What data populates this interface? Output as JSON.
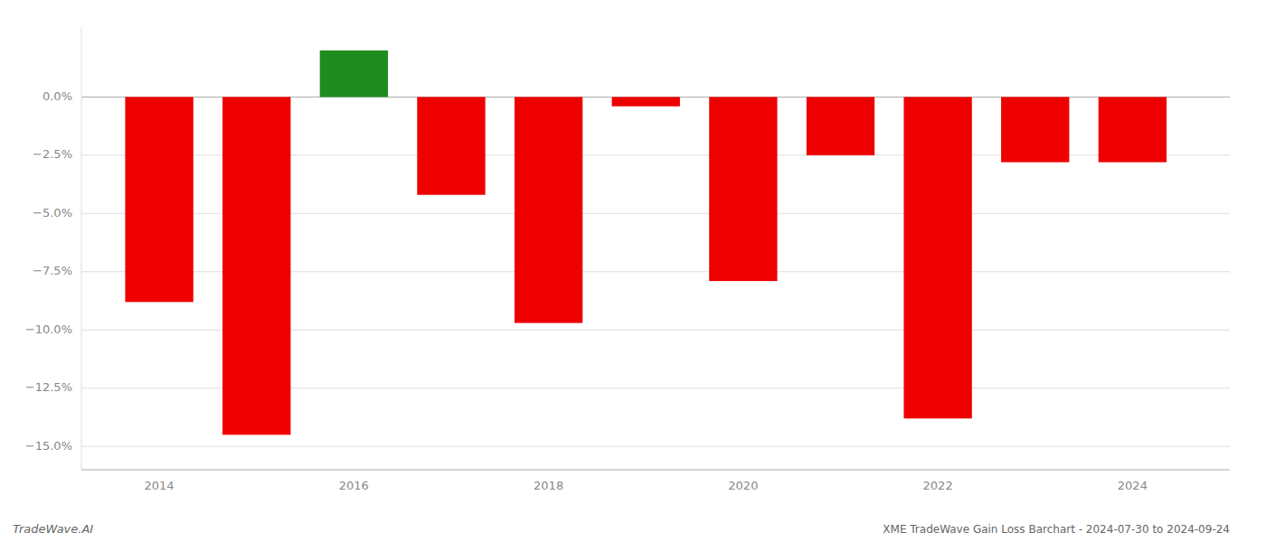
{
  "chart_data": {
    "type": "bar",
    "title": "XME TradeWave Gain Loss Barchart - 2024-07-30 to 2024-09-24",
    "annotations": [
      "TradeWave.AI"
    ],
    "x": [
      2014,
      2015,
      2016,
      2017,
      2018,
      2019,
      2020,
      2021,
      2022,
      2023,
      2024
    ],
    "values": [
      -8.8,
      -14.5,
      2.0,
      -4.2,
      -9.7,
      -0.4,
      -7.9,
      -2.5,
      -13.8,
      -2.8,
      -2.8
    ],
    "colors": [
      "#ee0000",
      "#ee0000",
      "#1f8c1f",
      "#ee0000",
      "#ee0000",
      "#ee0000",
      "#ee0000",
      "#ee0000",
      "#ee0000",
      "#ee0000",
      "#ee0000"
    ],
    "xlim": [
      2013.2,
      2025.0
    ],
    "xticks": [
      2014,
      2016,
      2018,
      2020,
      2022,
      2024
    ],
    "ylim": [
      -16.0,
      3.0
    ],
    "yticks": [
      {
        "value": 0.0,
        "label": "0.0%"
      },
      {
        "value": -2.5,
        "label": "−2.5%"
      },
      {
        "value": -5.0,
        "label": "−5.0%"
      },
      {
        "value": -7.5,
        "label": "−7.5%"
      },
      {
        "value": -10.0,
        "label": "−10.0%"
      },
      {
        "value": -12.5,
        "label": "−12.5%"
      },
      {
        "value": -15.0,
        "label": "−15.0%"
      }
    ],
    "grid": true
  }
}
